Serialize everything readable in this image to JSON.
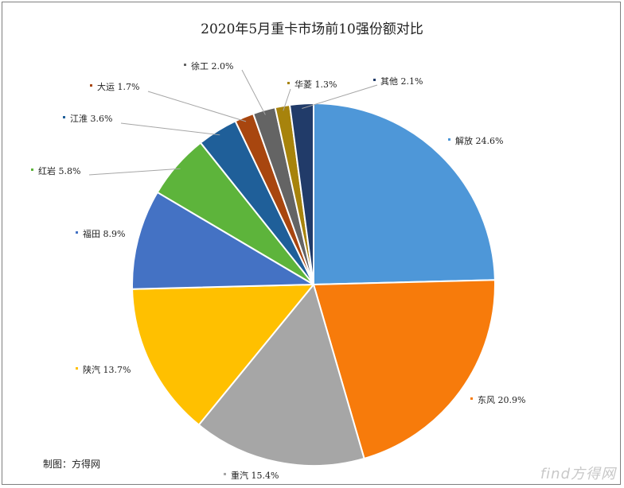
{
  "chart_data": {
    "type": "pie",
    "title": "2020年5月重卡市场前10强份额对比",
    "slices": [
      {
        "label": "解放",
        "value": 24.6,
        "text": "解放 24.6%",
        "color": "#4e97d8"
      },
      {
        "label": "东风",
        "value": 20.9,
        "text": "东风 20.9%",
        "color": "#f77b0b"
      },
      {
        "label": "重汽",
        "value": 15.4,
        "text": "重汽 15.4%",
        "color": "#a6a6a6"
      },
      {
        "label": "陕汽",
        "value": 13.7,
        "text": "陕汽 13.7%",
        "color": "#ffc000"
      },
      {
        "label": "福田",
        "value": 8.9,
        "text": "福田 8.9%",
        "color": "#4472c4"
      },
      {
        "label": "红岩",
        "value": 5.8,
        "text": "红岩 5.8%",
        "color": "#5db43b"
      },
      {
        "label": "江淮",
        "value": 3.6,
        "text": "江淮 3.6%",
        "color": "#1f5f99"
      },
      {
        "label": "大运",
        "value": 1.7,
        "text": "大运 1.7%",
        "color": "#a8460f"
      },
      {
        "label": "徐工",
        "value": 2.0,
        "text": "徐工 2.0%",
        "color": "#646464"
      },
      {
        "label": "华菱",
        "value": 1.3,
        "text": "华菱 1.3%",
        "color": "#a7830c"
      },
      {
        "label": "其他",
        "value": 2.1,
        "text": "其他 2.1%",
        "color": "#213b69"
      }
    ]
  },
  "credit": "制图：方得网",
  "watermark": "find方得网"
}
